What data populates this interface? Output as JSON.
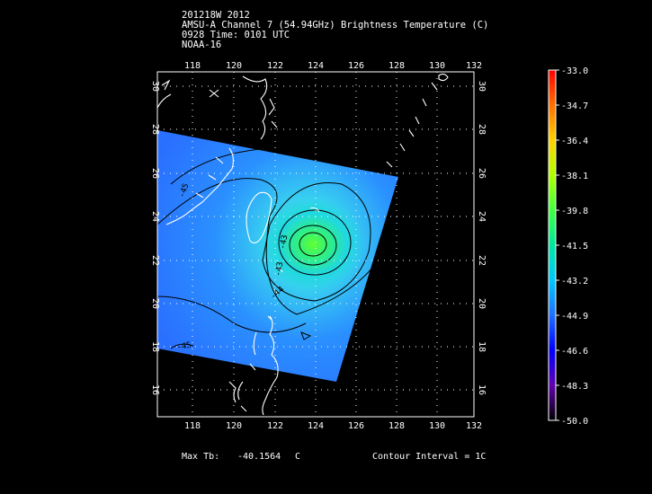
{
  "header": {
    "line1": "201218W 2012",
    "line2": "AMSU-A Channel 7 (54.94GHz) Brightness Temperature (C)",
    "line3": "0928 Time: 0101 UTC",
    "line4": "NOAA-16"
  },
  "map": {
    "lon_range": [
      116.5,
      132
    ],
    "lat_range": [
      14.5,
      30.5
    ],
    "lon_ticks": [
      "118",
      "120",
      "122",
      "124",
      "126",
      "128",
      "130",
      "132"
    ],
    "lat_ticks": [
      "16",
      "18",
      "20",
      "22",
      "24",
      "26",
      "28",
      "30"
    ],
    "contour_labels": [
      "-45",
      "-43",
      "-43",
      "-44",
      "-45"
    ]
  },
  "colorbar": {
    "labels": [
      "-33.0",
      "-34.7",
      "-36.4",
      "-38.1",
      "-39.8",
      "-41.5",
      "-43.2",
      "-44.9",
      "-46.6",
      "-48.3",
      "-50.0"
    ],
    "colors": [
      "#ff0000",
      "#ff8000",
      "#ffd000",
      "#c0ff00",
      "#40ff40",
      "#00e0a0",
      "#00c8ff",
      "#2060ff",
      "#0000ff",
      "#6000b0",
      "#400040"
    ]
  },
  "footer": {
    "max_tb_label": "Max Tb:",
    "max_tb_value": "-40.1564",
    "max_tb_unit": "C",
    "contour_interval": "Contour Interval = 1C"
  }
}
